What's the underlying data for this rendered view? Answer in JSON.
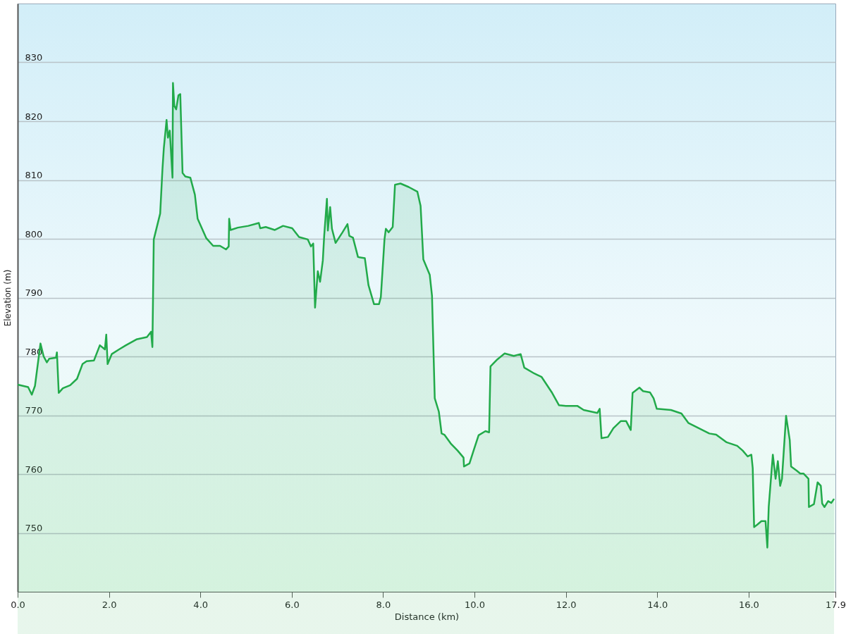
{
  "chart_data": {
    "type": "area",
    "xlabel": "Distance  (km)",
    "ylabel": "Elevation (m)",
    "xlim": [
      0,
      17.9
    ],
    "ylim": [
      740,
      840
    ],
    "xticks": [
      {
        "value": 0,
        "label": "0.0"
      },
      {
        "value": 2,
        "label": "2.0"
      },
      {
        "value": 4,
        "label": "4.0"
      },
      {
        "value": 6,
        "label": "6.0"
      },
      {
        "value": 8,
        "label": "8.0"
      },
      {
        "value": 10,
        "label": "10.0"
      },
      {
        "value": 12,
        "label": "12.0"
      },
      {
        "value": 14,
        "label": "14.0"
      },
      {
        "value": 16,
        "label": "16.0"
      },
      {
        "value": 17.9,
        "label": "17.9"
      }
    ],
    "yticks": [
      750,
      760,
      770,
      780,
      790,
      800,
      810,
      820,
      830
    ],
    "grid": "y",
    "x": [
      0,
      0.23,
      0.31,
      0.38,
      0.5,
      0.57,
      0.64,
      0.69,
      0.84,
      0.86,
      0.9,
      0.99,
      1.15,
      1.3,
      1.42,
      1.51,
      1.67,
      1.8,
      1.91,
      1.94,
      1.97,
      2.06,
      2.22,
      2.37,
      2.6,
      2.83,
      2.92,
      2.95,
      2.98,
      3.12,
      3.17,
      3.2,
      3.26,
      3.29,
      3.33,
      3.39,
      3.4,
      3.43,
      3.47,
      3.52,
      3.56,
      3.61,
      3.67,
      3.78,
      3.88,
      3.94,
      4.13,
      4.28,
      4.43,
      4.56,
      4.62,
      4.63,
      4.66,
      4.82,
      5.05,
      5.28,
      5.31,
      5.43,
      5.63,
      5.81,
      6.01,
      6.16,
      6.35,
      6.42,
      6.47,
      6.51,
      6.57,
      6.62,
      6.68,
      6.71,
      6.77,
      6.79,
      6.84,
      6.88,
      6.96,
      7.11,
      7.22,
      7.26,
      7.34,
      7.45,
      7.6,
      7.68,
      7.8,
      7.91,
      7.95,
      8.03,
      8.06,
      8.12,
      8.21,
      8.26,
      8.38,
      8.56,
      8.75,
      8.82,
      8.88,
      9.02,
      9.07,
      9.13,
      9.22,
      9.28,
      9.34,
      9.48,
      9.63,
      9.76,
      9.77,
      9.89,
      9.98,
      10.09,
      10.24,
      10.32,
      10.35,
      10.5,
      10.66,
      10.86,
      11.01,
      11.09,
      11.31,
      11.47,
      11.7,
      11.85,
      12,
      12.25,
      12.39,
      12.69,
      12.74,
      12.78,
      12.92,
      13.04,
      13.2,
      13.32,
      13.42,
      13.46,
      13.61,
      13.69,
      13.84,
      13.92,
      13.99,
      14.3,
      14.53,
      14.68,
      14.91,
      15.14,
      15.29,
      15.52,
      15.75,
      15.87,
      15.98,
      16.06,
      16.09,
      16.12,
      16.19,
      16.28,
      16.37,
      16.41,
      16.44,
      16.53,
      16.59,
      16.64,
      16.69,
      16.73,
      16.82,
      16.9,
      16.93,
      17.05,
      17.13,
      17.2,
      17.31,
      17.32,
      17.43,
      17.51,
      17.58,
      17.61,
      17.66,
      17.74,
      17.81,
      17.87
    ],
    "series": [
      {
        "color": "#22aa4a",
        "values": [
          775.2,
          774.8,
          773.5,
          775,
          782.2,
          780,
          779,
          779.6,
          779.8,
          780.7,
          773.8,
          774.6,
          775.1,
          776.2,
          778.7,
          779.2,
          779.3,
          781.9,
          781.2,
          783.7,
          778.7,
          780.4,
          781.2,
          781.9,
          782.9,
          783.3,
          784.2,
          781.6,
          799.9,
          804.3,
          811.8,
          815.4,
          820.2,
          817.2,
          818.4,
          810.4,
          826.5,
          822.6,
          822,
          824.4,
          824.6,
          811.2,
          810.6,
          810.4,
          807.5,
          803.4,
          800.1,
          798.8,
          798.8,
          798.2,
          798.7,
          803.4,
          801.5,
          801.9,
          802.2,
          802.7,
          801.8,
          802,
          801.5,
          802.2,
          801.8,
          800.3,
          799.9,
          798.7,
          799.2,
          788.3,
          794.5,
          792.7,
          796.3,
          800.5,
          806.8,
          801.4,
          805.4,
          801.7,
          799.3,
          801.1,
          802.5,
          800.5,
          800.2,
          796.9,
          796.7,
          792.1,
          788.9,
          788.9,
          790.1,
          799.9,
          801.7,
          801.1,
          802,
          809.2,
          809.4,
          808.8,
          808,
          805.6,
          796.5,
          793.9,
          790.3,
          772.9,
          770.6,
          766.9,
          766.7,
          765.2,
          764,
          762.8,
          761.3,
          761.8,
          764,
          766.6,
          767.3,
          767.1,
          778.3,
          779.5,
          780.5,
          780.1,
          780.4,
          778.1,
          777.1,
          776.5,
          773.8,
          771.7,
          771.6,
          771.6,
          770.9,
          770.4,
          771.1,
          766.1,
          766.3,
          767.8,
          769,
          769,
          767.5,
          773.8,
          774.7,
          774.1,
          773.9,
          772.9,
          771.1,
          770.9,
          770.3,
          768.7,
          767.8,
          766.9,
          766.7,
          765.4,
          764.8,
          764,
          763,
          763.3,
          761,
          751,
          751.4,
          752,
          752,
          747.5,
          754.4,
          763.3,
          759.2,
          762.2,
          758,
          759.2,
          769.9,
          765.8,
          761.3,
          760.6,
          760.1,
          760.1,
          759.2,
          754.4,
          754.9,
          758.6,
          758,
          755,
          754.4,
          755.4,
          755.1,
          755.8
        ]
      }
    ]
  }
}
